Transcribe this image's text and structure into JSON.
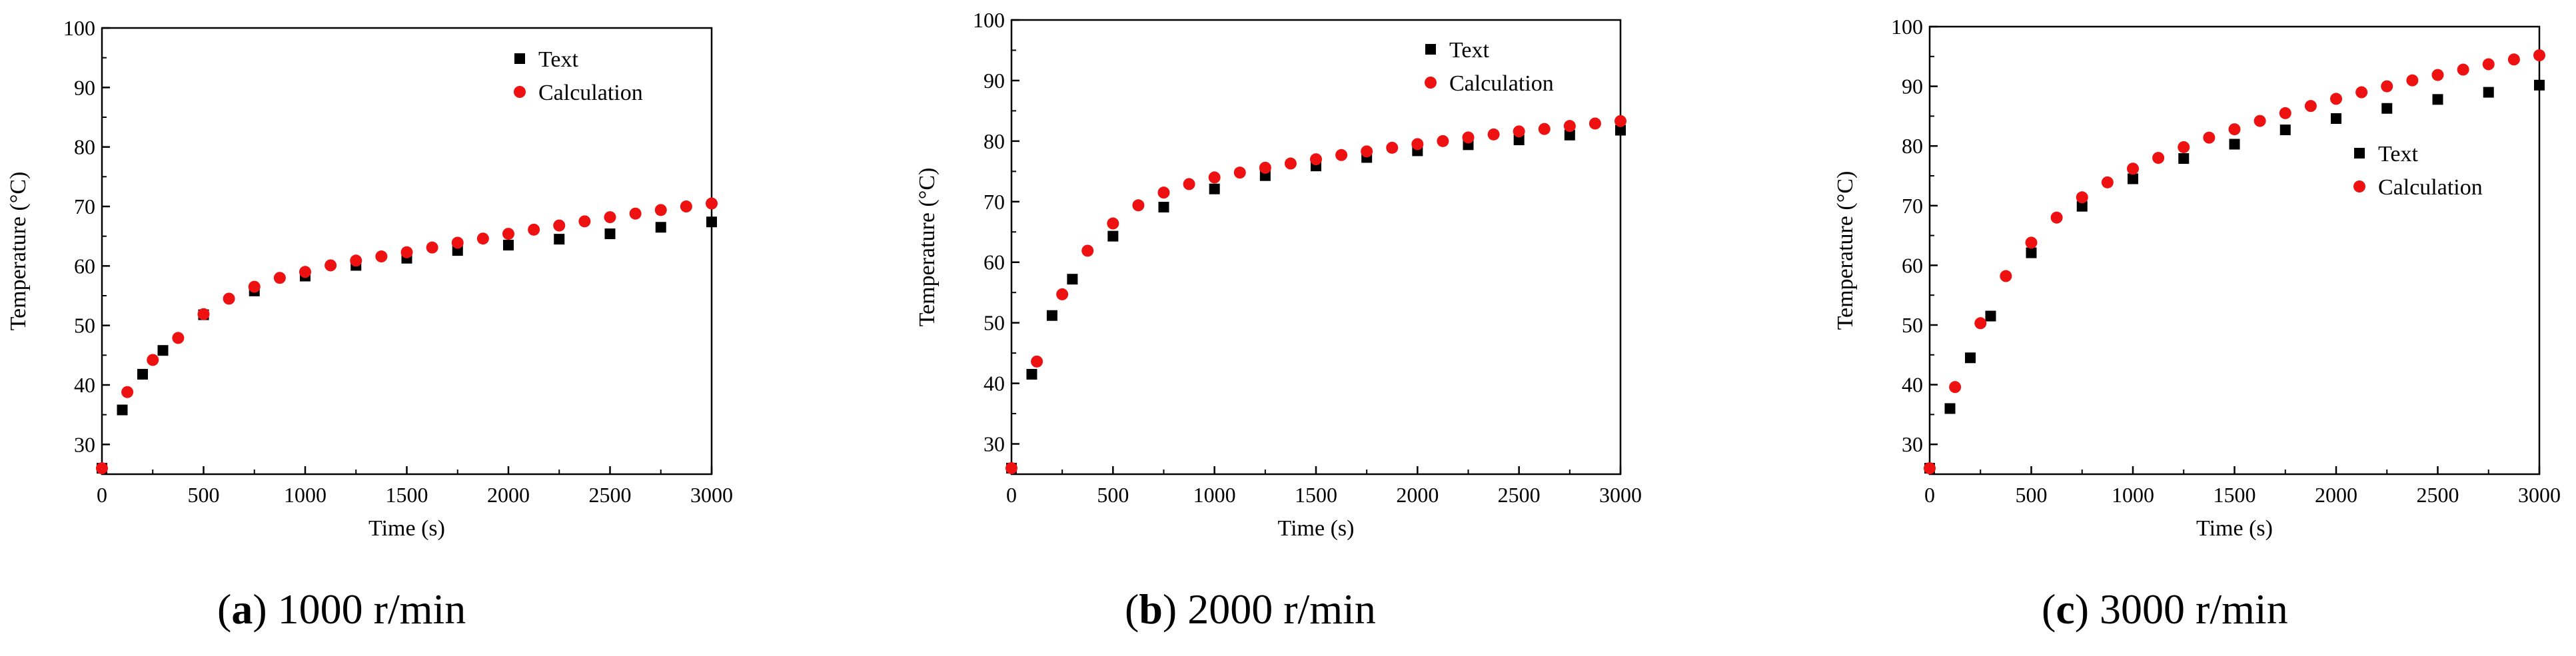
{
  "chart_data": [
    {
      "type": "scatter",
      "caption": {
        "letter": "a",
        "text": "1000 r/min"
      },
      "xlabel": "Time (s)",
      "ylabel": "Temperature (°C)",
      "xlim": [
        0,
        3000
      ],
      "ylim": [
        25,
        100
      ],
      "xticks": [
        0,
        500,
        1000,
        1500,
        2000,
        2500,
        3000
      ],
      "yticks": [
        30,
        40,
        50,
        60,
        70,
        80,
        90,
        100
      ],
      "legend_position": "top-right",
      "series": [
        {
          "name": "Text",
          "marker": "square",
          "color": "#000000",
          "x": [
            0,
            100,
            200,
            300,
            500,
            750,
            1000,
            1250,
            1500,
            1750,
            2000,
            2250,
            2500,
            2750,
            3000
          ],
          "y": [
            26,
            35.8,
            41.8,
            45.8,
            51.8,
            55.8,
            58.3,
            60.1,
            61.3,
            62.6,
            63.5,
            64.5,
            65.4,
            66.5,
            67.4
          ]
        },
        {
          "name": "Calculation",
          "marker": "circle",
          "color": "#ee1111",
          "x": [
            0,
            125,
            250,
            375,
            500,
            625,
            750,
            875,
            1000,
            1125,
            1250,
            1375,
            1500,
            1625,
            1750,
            1875,
            2000,
            2125,
            2250,
            2375,
            2500,
            2625,
            2750,
            2875,
            3000
          ],
          "y": [
            26,
            38.8,
            44.2,
            47.9,
            51.9,
            54.5,
            56.5,
            58.0,
            59.0,
            60.1,
            60.9,
            61.6,
            62.3,
            63.1,
            63.9,
            64.6,
            65.4,
            66.1,
            66.8,
            67.5,
            68.2,
            68.8,
            69.4,
            70.0,
            70.5
          ]
        }
      ]
    },
    {
      "type": "scatter",
      "caption": {
        "letter": "b",
        "text": "2000 r/min"
      },
      "xlabel": "Time (s)",
      "ylabel": "Temperature (°C)",
      "xlim": [
        0,
        3000
      ],
      "ylim": [
        25,
        100
      ],
      "xticks": [
        0,
        500,
        1000,
        1500,
        2000,
        2500,
        3000
      ],
      "yticks": [
        30,
        40,
        50,
        60,
        70,
        80,
        90,
        100
      ],
      "legend_position": "top-right",
      "series": [
        {
          "name": "Text",
          "marker": "square",
          "color": "#000000",
          "x": [
            0,
            100,
            200,
            300,
            500,
            750,
            1000,
            1250,
            1500,
            1750,
            2000,
            2250,
            2500,
            2750,
            3000
          ],
          "y": [
            26,
            41.5,
            51.2,
            57.2,
            64.3,
            69.1,
            72.1,
            74.3,
            75.9,
            77.3,
            78.4,
            79.4,
            80.2,
            81.0,
            81.8
          ]
        },
        {
          "name": "Calculation",
          "marker": "circle",
          "color": "#ee1111",
          "x": [
            0,
            125,
            250,
            375,
            500,
            625,
            750,
            875,
            1000,
            1125,
            1250,
            1375,
            1500,
            1625,
            1750,
            1875,
            2000,
            2125,
            2250,
            2375,
            2500,
            2625,
            2750,
            2875,
            3000
          ],
          "y": [
            26,
            43.6,
            54.7,
            61.9,
            66.4,
            69.4,
            71.5,
            72.9,
            74.0,
            74.8,
            75.6,
            76.3,
            77.0,
            77.7,
            78.3,
            78.9,
            79.5,
            80.0,
            80.6,
            81.1,
            81.6,
            82.0,
            82.5,
            82.9,
            83.3
          ]
        }
      ]
    },
    {
      "type": "scatter",
      "caption": {
        "letter": "c",
        "text": "3000 r/min"
      },
      "xlabel": "Time (s)",
      "ylabel": "Temperature (°C)",
      "xlim": [
        0,
        3000
      ],
      "ylim": [
        25,
        100
      ],
      "xticks": [
        0,
        500,
        1000,
        1500,
        2000,
        2500,
        3000
      ],
      "yticks": [
        30,
        40,
        50,
        60,
        70,
        80,
        90,
        100
      ],
      "legend_position": "center-right",
      "series": [
        {
          "name": "Text",
          "marker": "square",
          "color": "#000000",
          "x": [
            0,
            100,
            200,
            300,
            500,
            750,
            1000,
            1250,
            1500,
            1750,
            2000,
            2250,
            2500,
            2750,
            3000
          ],
          "y": [
            26,
            36,
            44.5,
            51.5,
            62.1,
            69.9,
            74.5,
            77.9,
            80.3,
            82.7,
            84.6,
            86.3,
            87.8,
            89.0,
            90.2
          ]
        },
        {
          "name": "Calculation",
          "marker": "circle",
          "color": "#ee1111",
          "x": [
            0,
            125,
            250,
            375,
            500,
            625,
            750,
            875,
            1000,
            1125,
            1250,
            1375,
            1500,
            1625,
            1750,
            1875,
            2000,
            2125,
            2250,
            2375,
            2500,
            2625,
            2750,
            2875,
            3000
          ],
          "y": [
            26,
            39.6,
            50.3,
            58.2,
            63.8,
            68.0,
            71.4,
            73.9,
            76.2,
            78.0,
            79.8,
            81.4,
            82.8,
            84.2,
            85.5,
            86.7,
            87.9,
            89.0,
            90.0,
            91.0,
            91.9,
            92.8,
            93.7,
            94.5,
            95.2
          ]
        }
      ]
    }
  ]
}
